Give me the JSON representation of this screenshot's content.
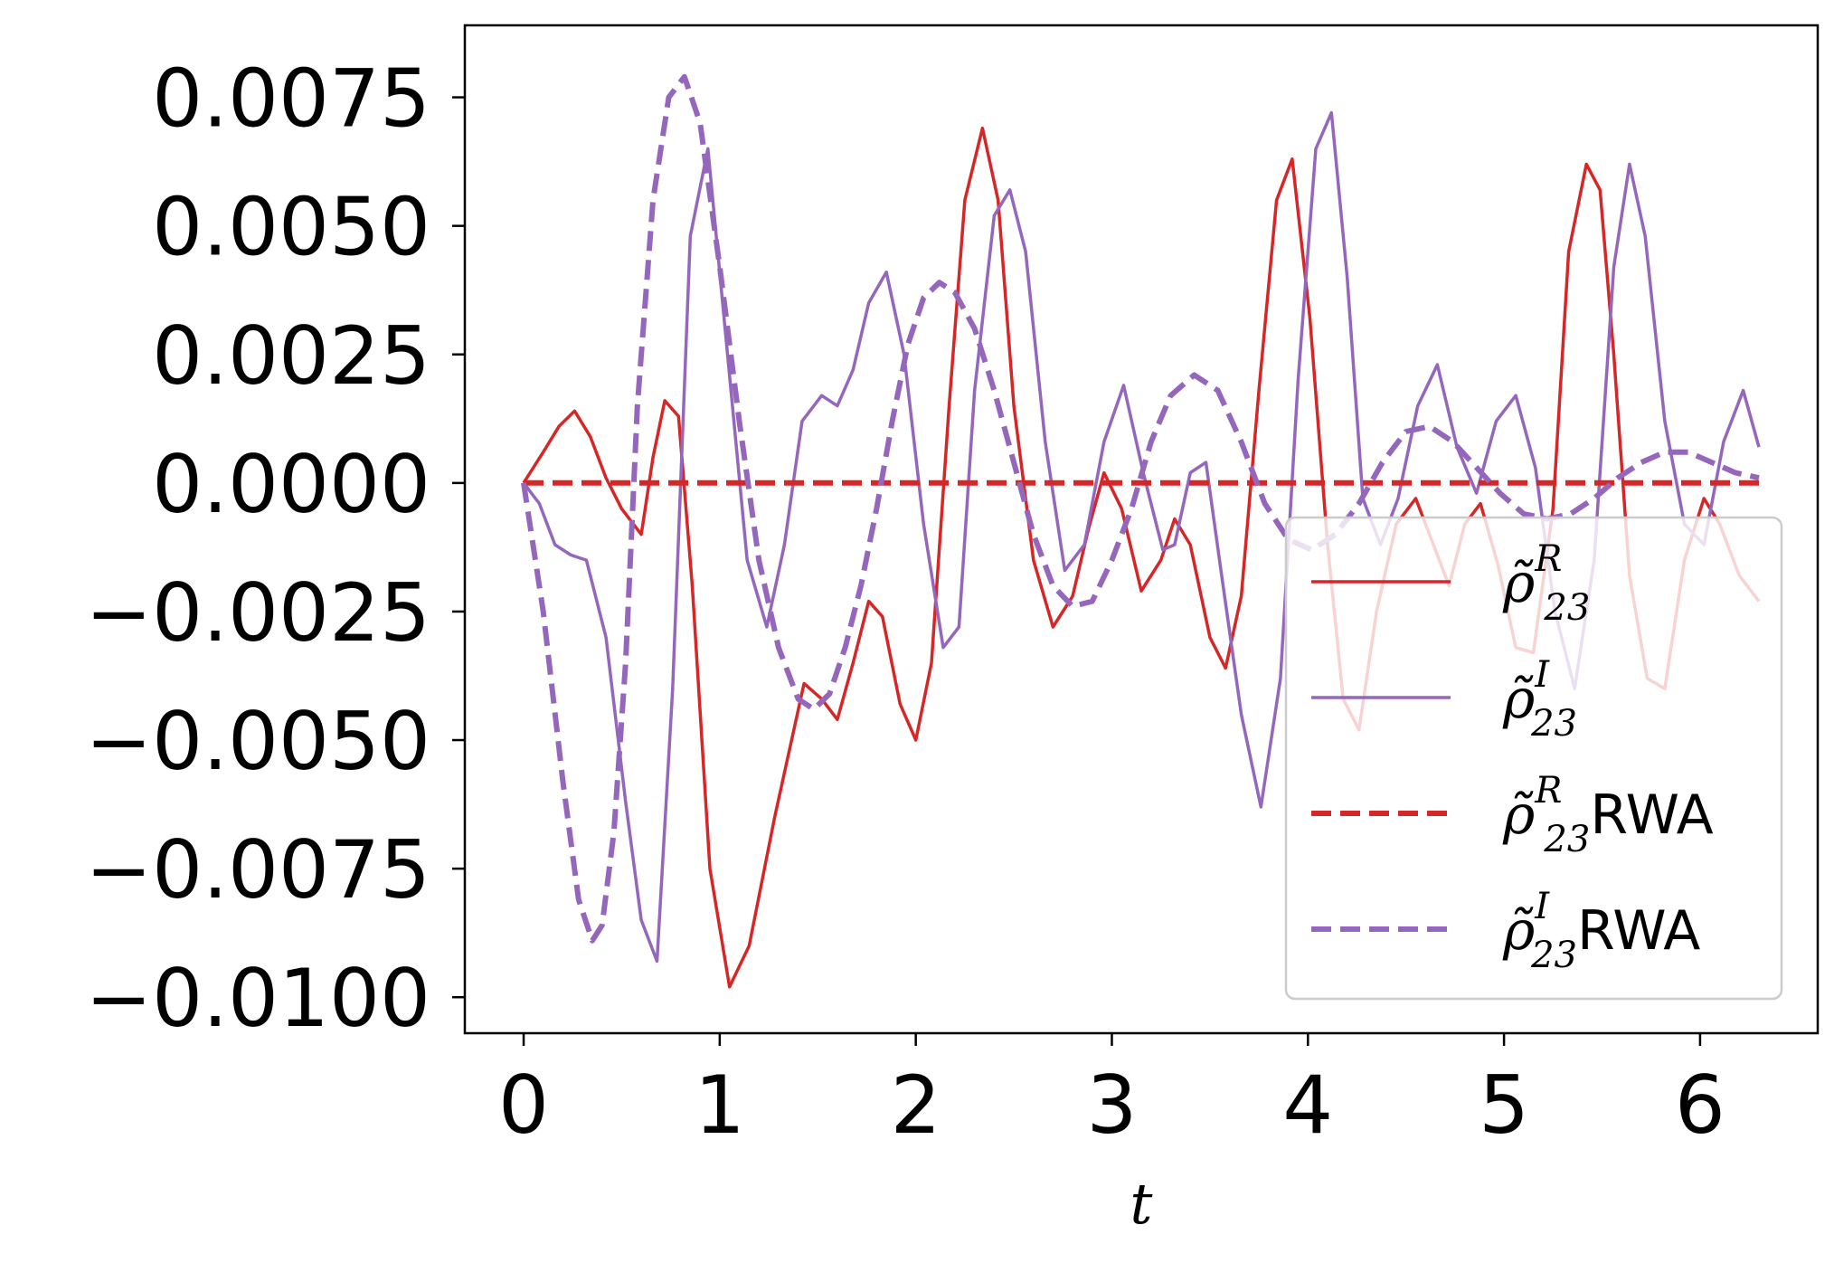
{
  "chart_data": {
    "type": "line",
    "xlabel": "t",
    "ylabel": "",
    "title": "",
    "xlim": [
      -0.3,
      6.6
    ],
    "ylim": [
      -0.0107,
      0.0089
    ],
    "xticks": [
      0,
      1,
      2,
      3,
      4,
      5,
      6
    ],
    "xtick_labels": [
      "0",
      "1",
      "2",
      "3",
      "4",
      "5",
      "6"
    ],
    "yticks": [
      0.0075,
      0.005,
      0.0025,
      0.0,
      -0.0025,
      -0.005,
      -0.0075,
      -0.01
    ],
    "ytick_labels": [
      "0.0075",
      "0.0050",
      "0.0025",
      "0.0000",
      "−0.0025",
      "−0.0050",
      "−0.0075",
      "−0.0100"
    ],
    "grid": false,
    "legend_position": "lower-right",
    "series": [
      {
        "name": "rho_23^R",
        "legend": {
          "base": "ρ̃",
          "sup": "R",
          "sub": "23",
          "suffix": ""
        },
        "color": "#d62728",
        "style": "solid",
        "x": [
          0.0,
          0.1,
          0.18,
          0.26,
          0.34,
          0.42,
          0.5,
          0.6,
          0.66,
          0.72,
          0.79,
          0.86,
          0.95,
          1.05,
          1.15,
          1.28,
          1.43,
          1.52,
          1.6,
          1.68,
          1.76,
          1.83,
          1.92,
          2.0,
          2.08,
          2.17,
          2.25,
          2.34,
          2.42,
          2.5,
          2.6,
          2.7,
          2.8,
          2.88,
          2.96,
          3.05,
          3.15,
          3.25,
          3.32,
          3.4,
          3.5,
          3.58,
          3.66,
          3.75,
          3.84,
          3.92,
          4.01,
          4.1,
          4.18,
          4.26,
          4.35,
          4.45,
          4.55,
          4.65,
          4.72,
          4.8,
          4.88,
          4.97,
          5.06,
          5.15,
          5.25,
          5.33,
          5.42,
          5.49,
          5.56,
          5.64,
          5.73,
          5.82,
          5.92,
          6.02,
          6.1,
          6.2,
          6.3
        ],
        "y": [
          0.0,
          0.0006,
          0.0011,
          0.0014,
          0.0009,
          0.0001,
          -0.0005,
          -0.001,
          0.0005,
          0.0016,
          0.0013,
          -0.002,
          -0.0075,
          -0.0098,
          -0.009,
          -0.0065,
          -0.0039,
          -0.0042,
          -0.0046,
          -0.0035,
          -0.0023,
          -0.0026,
          -0.0043,
          -0.005,
          -0.0035,
          0.0015,
          0.0055,
          0.0069,
          0.0055,
          0.0015,
          -0.0015,
          -0.0028,
          -0.0022,
          -0.0009,
          0.0002,
          -0.0005,
          -0.0021,
          -0.0015,
          -0.0007,
          -0.0012,
          -0.003,
          -0.0036,
          -0.0022,
          0.0018,
          0.0055,
          0.0063,
          0.0032,
          -0.0012,
          -0.0042,
          -0.0048,
          -0.0025,
          -0.0008,
          -0.0003,
          -0.0013,
          -0.002,
          -0.0008,
          -0.0004,
          -0.0016,
          -0.0032,
          -0.0033,
          -0.0005,
          0.0045,
          0.0062,
          0.0057,
          0.0025,
          -0.0018,
          -0.0038,
          -0.004,
          -0.0015,
          -0.0003,
          -0.0008,
          -0.0018,
          -0.0023
        ]
      },
      {
        "name": "rho_23^I",
        "legend": {
          "base": "ρ̃",
          "sup": "I",
          "sub": "23",
          "suffix": ""
        },
        "color": "#9467bd",
        "style": "solid",
        "x": [
          0.0,
          0.08,
          0.16,
          0.24,
          0.32,
          0.42,
          0.52,
          0.6,
          0.68,
          0.76,
          0.85,
          0.94,
          1.04,
          1.14,
          1.24,
          1.33,
          1.42,
          1.52,
          1.6,
          1.68,
          1.76,
          1.85,
          1.94,
          2.04,
          2.14,
          2.22,
          2.3,
          2.4,
          2.48,
          2.56,
          2.66,
          2.76,
          2.86,
          2.96,
          3.06,
          3.16,
          3.26,
          3.32,
          3.4,
          3.48,
          3.56,
          3.66,
          3.76,
          3.86,
          3.95,
          4.04,
          4.12,
          4.2,
          4.28,
          4.37,
          4.46,
          4.56,
          4.66,
          4.76,
          4.86,
          4.96,
          5.06,
          5.16,
          5.26,
          5.36,
          5.46,
          5.56,
          5.64,
          5.72,
          5.82,
          5.92,
          6.02,
          6.12,
          6.22,
          6.3
        ],
        "y": [
          0.0,
          -0.0004,
          -0.0012,
          -0.0014,
          -0.0015,
          -0.003,
          -0.0062,
          -0.0085,
          -0.0093,
          -0.004,
          0.0048,
          0.0065,
          0.0025,
          -0.0015,
          -0.0028,
          -0.0012,
          0.0012,
          0.0017,
          0.0015,
          0.0022,
          0.0035,
          0.0041,
          0.0025,
          -0.0008,
          -0.0032,
          -0.0028,
          0.0018,
          0.0052,
          0.0057,
          0.0045,
          0.0008,
          -0.0017,
          -0.0012,
          0.0008,
          0.0019,
          0.0002,
          -0.0013,
          -0.0012,
          0.0002,
          0.0004,
          -0.0018,
          -0.0045,
          -0.0063,
          -0.0038,
          0.002,
          0.0065,
          0.0072,
          0.004,
          -0.0003,
          -0.0012,
          -0.0003,
          0.0015,
          0.0023,
          0.0007,
          -0.0002,
          0.0012,
          0.0017,
          0.0003,
          -0.0025,
          -0.004,
          -0.0015,
          0.0042,
          0.0062,
          0.0048,
          0.0012,
          -0.0008,
          -0.0012,
          0.0008,
          0.0018,
          0.0007
        ]
      },
      {
        "name": "rho_23^R RWA",
        "legend": {
          "base": "ρ̃",
          "sup": "R",
          "sub": "23",
          "suffix": "RWA"
        },
        "color": "#d62728",
        "style": "dashed",
        "x": [
          0.0,
          6.3
        ],
        "y": [
          0.0,
          0.0
        ]
      },
      {
        "name": "rho_23^I RWA",
        "legend": {
          "base": "ρ̃",
          "sup": "I",
          "sub": "23",
          "suffix": "RWA"
        },
        "color": "#9467bd",
        "style": "dashed",
        "x": [
          0.0,
          0.1,
          0.2,
          0.28,
          0.35,
          0.4,
          0.46,
          0.52,
          0.58,
          0.66,
          0.74,
          0.82,
          0.9,
          1.0,
          1.1,
          1.2,
          1.3,
          1.4,
          1.48,
          1.56,
          1.64,
          1.72,
          1.8,
          1.88,
          1.96,
          2.04,
          2.12,
          2.2,
          2.3,
          2.4,
          2.5,
          2.6,
          2.7,
          2.8,
          2.9,
          3.0,
          3.1,
          3.2,
          3.3,
          3.42,
          3.54,
          3.66,
          3.78,
          3.9,
          4.02,
          4.14,
          4.26,
          4.38,
          4.5,
          4.62,
          4.74,
          4.86,
          4.98,
          5.1,
          5.22,
          5.34,
          5.46,
          5.58,
          5.7,
          5.82,
          5.94,
          6.06,
          6.18,
          6.3
        ],
        "y": [
          0.0,
          -0.0025,
          -0.0058,
          -0.0081,
          -0.0089,
          -0.0086,
          -0.0068,
          -0.0035,
          0.0015,
          0.0055,
          0.0075,
          0.0079,
          0.007,
          0.0042,
          0.0012,
          -0.0015,
          -0.0032,
          -0.0042,
          -0.0044,
          -0.0041,
          -0.0032,
          -0.002,
          -0.0005,
          0.0012,
          0.0027,
          0.0036,
          0.0039,
          0.0037,
          0.003,
          0.0018,
          0.0004,
          -0.001,
          -0.002,
          -0.0024,
          -0.0023,
          -0.0015,
          -0.0005,
          0.0008,
          0.0017,
          0.0021,
          0.0018,
          0.0008,
          -0.0004,
          -0.0011,
          -0.0013,
          -0.001,
          -0.0004,
          0.0004,
          0.001,
          0.0011,
          0.0008,
          0.0003,
          -0.0002,
          -0.0006,
          -0.0007,
          -0.0006,
          -0.0003,
          0.0001,
          0.0004,
          0.0006,
          0.0006,
          0.0004,
          0.0002,
          0.0001
        ]
      }
    ]
  }
}
